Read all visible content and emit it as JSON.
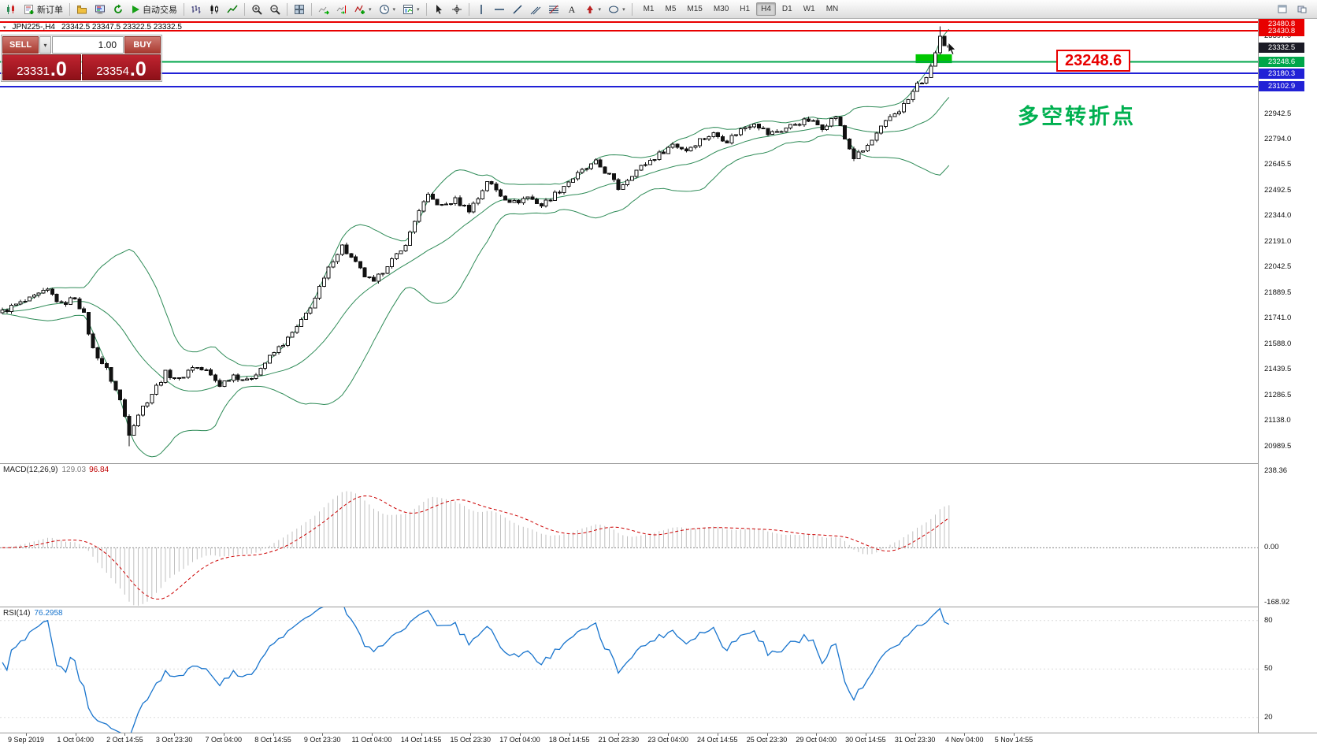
{
  "toolbar": {
    "buttons": [
      {
        "name": "new-chart-button",
        "icon": "candle-chart-icon"
      },
      {
        "name": "new-order-button",
        "icon": "new-order-icon",
        "label": "新订单"
      },
      {
        "sep": true
      },
      {
        "name": "profiles-button",
        "icon": "profiles-icon"
      },
      {
        "name": "market-watch-button",
        "icon": "market-watch-icon"
      },
      {
        "name": "refresh-button",
        "icon": "refresh-icon"
      },
      {
        "name": "auto-trading-button",
        "icon": "play-icon",
        "label": "自动交易"
      },
      {
        "sep": true
      },
      {
        "name": "bar-chart-button",
        "icon": "bars-icon"
      },
      {
        "name": "candlestick-chart-button",
        "icon": "candles-icon"
      },
      {
        "name": "line-chart-button",
        "icon": "line-icon"
      },
      {
        "sep": true
      },
      {
        "name": "zoom-in-button",
        "icon": "zoom-in-icon"
      },
      {
        "name": "zoom-out-button",
        "icon": "zoom-out-icon"
      },
      {
        "sep": true
      },
      {
        "name": "tile-windows-button",
        "icon": "tile-icon"
      },
      {
        "sep": true
      },
      {
        "name": "auto-scroll-button",
        "icon": "auto-scroll-icon"
      },
      {
        "name": "chart-shift-button",
        "icon": "chart-shift-icon"
      },
      {
        "name": "indicators-button",
        "icon": "indicators-icon",
        "dropdown": true
      },
      {
        "name": "periods-button",
        "icon": "clock-icon",
        "dropdown": true
      },
      {
        "name": "templates-button",
        "icon": "template-icon",
        "dropdown": true
      },
      {
        "sep": true
      },
      {
        "name": "cursor-button",
        "icon": "cursor-arrow-icon"
      },
      {
        "name": "crosshair-button",
        "icon": "crosshair-icon"
      },
      {
        "sep": true
      },
      {
        "name": "vertical-line-button",
        "icon": "vline-icon"
      },
      {
        "name": "horizontal-line-button",
        "icon": "hline-icon"
      },
      {
        "name": "trendline-button",
        "icon": "trendline-icon"
      },
      {
        "name": "channel-button",
        "icon": "channel-icon"
      },
      {
        "name": "fibonacci-button",
        "icon": "fibonacci-icon"
      },
      {
        "name": "text-button",
        "icon": "text-icon"
      },
      {
        "name": "arrows-button",
        "icon": "arrow-icon",
        "dropdown": true
      },
      {
        "name": "shapes-button",
        "icon": "shapes-icon",
        "dropdown": true
      },
      {
        "sep": true
      }
    ],
    "timeframes": [
      "M1",
      "M5",
      "M15",
      "M30",
      "H1",
      "H4",
      "D1",
      "W1",
      "MN"
    ],
    "active_timeframe": "H4",
    "right_icons": [
      {
        "name": "chart-window-button",
        "icon": "window-icon"
      },
      {
        "name": "docking-button",
        "icon": "dock-icon"
      }
    ]
  },
  "chart": {
    "header": {
      "symbol_period": "JPN225-,H4",
      "ohlc": "23342.5 23347.5 23322.5 23332.5"
    },
    "annotation": {
      "text": "多空转折点",
      "color": "#00b050"
    },
    "price_flag": {
      "text": "23248.6",
      "color": "#e80000"
    },
    "current_price": {
      "value": "23332.5",
      "badge_color": "#1b1b26"
    },
    "hlines": [
      {
        "price": 23480.8,
        "label": "23480.8",
        "color": "#e80000"
      },
      {
        "price": 23430.8,
        "label": "23430.8",
        "color": "#e80000"
      },
      {
        "price": 23248.6,
        "label": "23248.6",
        "color": "#00a64a"
      },
      {
        "price": 23180.3,
        "label": "23180.3",
        "color": "#2121d6"
      },
      {
        "price": 23102.9,
        "label": "23102.9",
        "color": "#2121d6"
      }
    ],
    "price_ticks": [
      "23397.0",
      "22942.5",
      "22794.0",
      "22645.5",
      "22492.5",
      "22344.0",
      "22191.0",
      "22042.5",
      "21889.5",
      "21741.0",
      "21588.0",
      "21439.5",
      "21286.5",
      "21138.0",
      "20989.5"
    ]
  },
  "trade_panel": {
    "sell_label": "SELL",
    "buy_label": "BUY",
    "volume": "1.00",
    "sell_price_main": "23331",
    "sell_price_frac": ".0",
    "buy_price_main": "23354",
    "buy_price_frac": ".0"
  },
  "macd_panel": {
    "name": "MACD(12,26,9)",
    "value_main": "129.03",
    "value_signal": "96.84",
    "ticks": [
      "238.36",
      "0.00",
      "-168.92"
    ]
  },
  "rsi_panel": {
    "name": "RSI(14)",
    "value": "76.2958",
    "ticks": [
      "80",
      "50",
      "20"
    ]
  },
  "time_axis": [
    "9 Sep 2019",
    "1 Oct 04:00",
    "2 Oct 14:55",
    "3 Oct 23:30",
    "7 Oct 04:00",
    "8 Oct 14:55",
    "9 Oct 23:30",
    "11 Oct 04:00",
    "14 Oct 14:55",
    "15 Oct 23:30",
    "17 Oct 04:00",
    "18 Oct 14:55",
    "21 Oct 23:30",
    "23 Oct 04:00",
    "24 Oct 14:55",
    "25 Oct 23:30",
    "29 Oct 04:00",
    "30 Oct 14:55",
    "31 Oct 23:30",
    "4 Nov 04:00",
    "5 Nov 14:55"
  ],
  "chart_data": {
    "type": "candlestick",
    "symbol": "JPN225-",
    "timeframe": "H4",
    "title": "JPN225-,H4",
    "n_candles": 210,
    "last_candle": {
      "o": 23342.5,
      "h": 23347.5,
      "l": 23322.5,
      "c": 23332.5
    },
    "price_waypoints": [
      [
        0,
        21780
      ],
      [
        3,
        21820
      ],
      [
        6,
        21850
      ],
      [
        10,
        21905
      ],
      [
        13,
        21820
      ],
      [
        16,
        21865
      ],
      [
        18,
        21760
      ],
      [
        20,
        21560
      ],
      [
        23,
        21440
      ],
      [
        26,
        21260
      ],
      [
        28,
        21070
      ],
      [
        30,
        21180
      ],
      [
        33,
        21300
      ],
      [
        36,
        21420
      ],
      [
        39,
        21380
      ],
      [
        42,
        21460
      ],
      [
        45,
        21430
      ],
      [
        48,
        21350
      ],
      [
        51,
        21410
      ],
      [
        54,
        21370
      ],
      [
        57,
        21450
      ],
      [
        60,
        21540
      ],
      [
        63,
        21620
      ],
      [
        66,
        21720
      ],
      [
        69,
        21860
      ],
      [
        71,
        21970
      ],
      [
        73,
        22090
      ],
      [
        75,
        22165
      ],
      [
        78,
        22060
      ],
      [
        80,
        21990
      ],
      [
        82,
        21945
      ],
      [
        85,
        22060
      ],
      [
        88,
        22130
      ],
      [
        90,
        22240
      ],
      [
        92,
        22380
      ],
      [
        94,
        22455
      ],
      [
        97,
        22400
      ],
      [
        100,
        22435
      ],
      [
        103,
        22380
      ],
      [
        105,
        22445
      ],
      [
        107,
        22550
      ],
      [
        110,
        22465
      ],
      [
        113,
        22420
      ],
      [
        116,
        22455
      ],
      [
        119,
        22405
      ],
      [
        122,
        22470
      ],
      [
        125,
        22545
      ],
      [
        128,
        22605
      ],
      [
        131,
        22655
      ],
      [
        134,
        22580
      ],
      [
        136,
        22505
      ],
      [
        139,
        22590
      ],
      [
        142,
        22650
      ],
      [
        145,
        22705
      ],
      [
        148,
        22765
      ],
      [
        151,
        22730
      ],
      [
        154,
        22790
      ],
      [
        157,
        22825
      ],
      [
        160,
        22785
      ],
      [
        163,
        22850
      ],
      [
        166,
        22895
      ],
      [
        169,
        22825
      ],
      [
        172,
        22845
      ],
      [
        175,
        22885
      ],
      [
        178,
        22905
      ],
      [
        181,
        22865
      ],
      [
        184,
        22930
      ],
      [
        186,
        22795
      ],
      [
        188,
        22685
      ],
      [
        190,
        22725
      ],
      [
        192,
        22785
      ],
      [
        194,
        22855
      ],
      [
        196,
        22925
      ],
      [
        198,
        22965
      ],
      [
        200,
        23025
      ],
      [
        202,
        23115
      ],
      [
        204,
        23150
      ],
      [
        206,
        23300
      ],
      [
        207,
        23395
      ],
      [
        208,
        23342.5
      ],
      [
        209,
        23332.5
      ]
    ],
    "spike_lows": [
      [
        28,
        20990
      ]
    ],
    "spike_highs": [
      [
        75,
        22175
      ],
      [
        207,
        23455
      ]
    ],
    "y_axis": {
      "visible_min": 20890,
      "visible_max": 23500
    },
    "indicators": {
      "bollinger": {
        "period": 20,
        "deviation": 2,
        "color": "#2e8b57"
      },
      "macd": {
        "fast": 12,
        "slow": 26,
        "signal": 9,
        "current_main": 129.03,
        "current_signal": 96.84,
        "axis_range": [
          -182,
          262
        ]
      },
      "rsi": {
        "period": 14,
        "current": 76.2958,
        "levels": [
          80,
          50,
          20
        ],
        "axis_range": [
          10.6,
          88.7
        ]
      }
    },
    "objects": {
      "highlight_rect": {
        "from_index": 202,
        "to_index": 210,
        "price_top": 23292,
        "price_bottom": 23240,
        "color": "#00c800"
      },
      "horizontal_lines": [
        23480.8,
        23430.8,
        23248.6,
        23180.3,
        23102.9
      ]
    }
  }
}
